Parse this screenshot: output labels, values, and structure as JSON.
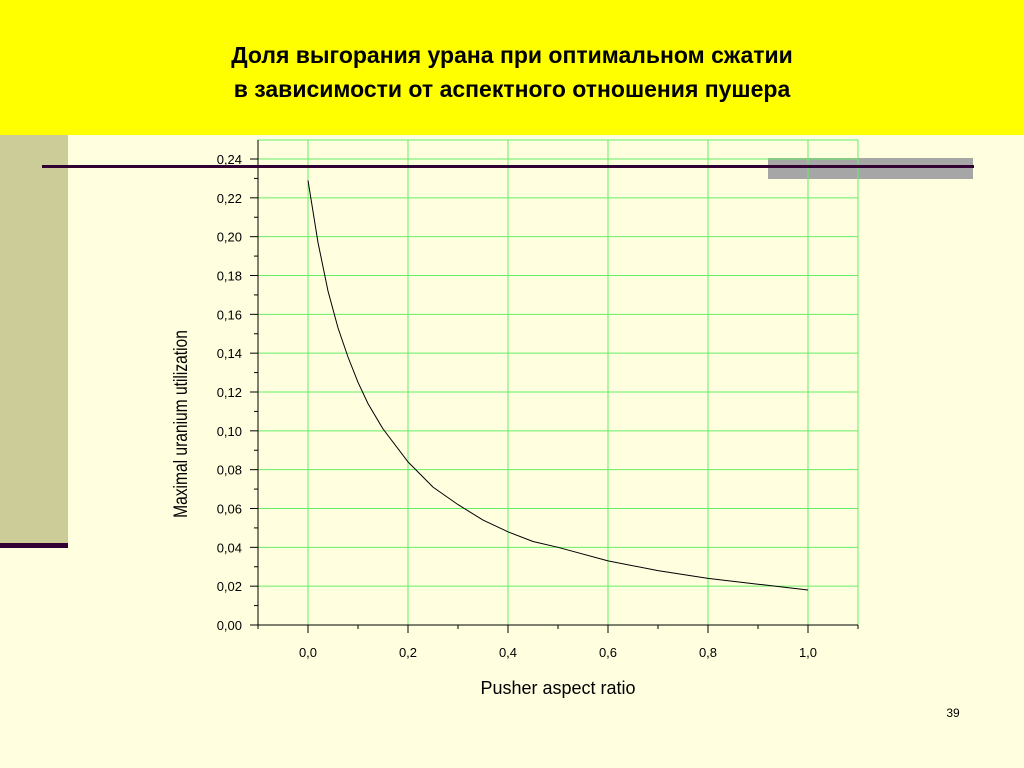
{
  "slide": {
    "title_lines": [
      "Доля выгорания урана при оптимальном сжатии",
      "в зависимости от аспектного отношения пушера"
    ],
    "page_number": "39"
  },
  "colors": {
    "title_band": "#FFFF00",
    "background": "#FFFFE0",
    "side_bar": "#CCCC99",
    "rule": "#330033",
    "grid": "#66EE66",
    "curve": "#000000"
  },
  "chart_data": {
    "type": "line",
    "title": "",
    "xlabel": "Pusher aspect ratio",
    "ylabel": "Maximal uranium utilization",
    "xlim": [
      -0.1,
      1.1
    ],
    "ylim": [
      0,
      0.24
    ],
    "x_ticks": [
      0.0,
      0.2,
      0.4,
      0.6,
      0.8,
      1.0
    ],
    "x_tick_labels": [
      "0,0",
      "0,2",
      "0,4",
      "0,6",
      "0,8",
      "1,0"
    ],
    "y_ticks": [
      0,
      0.02,
      0.04,
      0.06,
      0.08,
      0.1,
      0.12,
      0.14,
      0.16,
      0.18,
      0.2,
      0.22,
      0.24
    ],
    "y_tick_labels": [
      "0,00",
      "0,02",
      "0,04",
      "0,06",
      "0,08",
      "0,10",
      "0,12",
      "0,14",
      "0,16",
      "0,18",
      "0,20",
      "0,22",
      "0,24"
    ],
    "grid": true,
    "series": [
      {
        "x": [
          0.0,
          0.02,
          0.04,
          0.06,
          0.08,
          0.1,
          0.12,
          0.15,
          0.2,
          0.25,
          0.3,
          0.35,
          0.4,
          0.45,
          0.5,
          0.6,
          0.7,
          0.8,
          0.9,
          1.0
        ],
        "y": [
          0.229,
          0.197,
          0.172,
          0.153,
          0.138,
          0.125,
          0.114,
          0.101,
          0.084,
          0.071,
          0.062,
          0.054,
          0.048,
          0.043,
          0.04,
          0.033,
          0.028,
          0.024,
          0.021,
          0.018
        ]
      }
    ]
  }
}
